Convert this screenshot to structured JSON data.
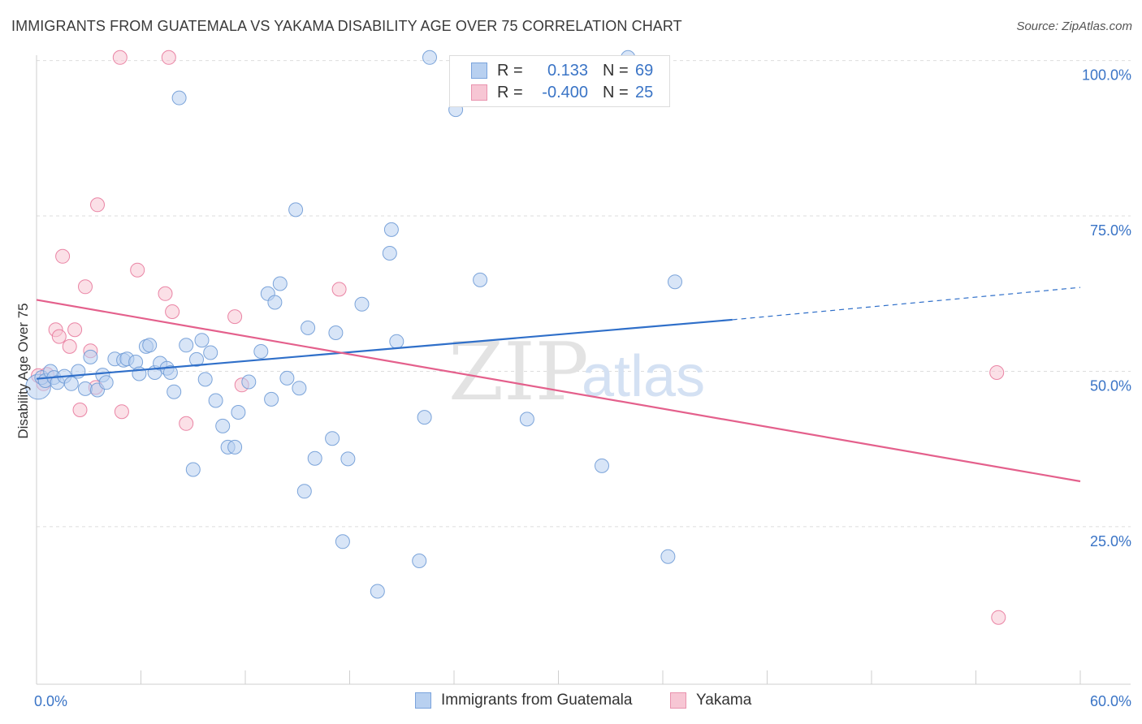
{
  "header": {
    "title": "IMMIGRANTS FROM GUATEMALA VS YAKAMA DISABILITY AGE OVER 75 CORRELATION CHART",
    "source": "Source: ZipAtlas.com"
  },
  "legend_box": {
    "rows": [
      {
        "r_label": "R =",
        "r_value": "0.133",
        "n_label": "N =",
        "n_value": "69"
      },
      {
        "r_label": "R =",
        "r_value": "-0.400",
        "n_label": "N =",
        "n_value": "25"
      }
    ]
  },
  "bottom_legend": [
    "Immigrants from Guatemala",
    "Yakama"
  ],
  "watermark": {
    "zip": "ZIP",
    "atlas": "atlas"
  },
  "colors": {
    "blue": "#3a74c6",
    "blue_fill": "#b8d0f0",
    "blue_line": "#2f6fc9",
    "pink": "#e8799c",
    "pink_fill": "#f7c6d4",
    "pink_line": "#e4608c",
    "grid": "#dddddd",
    "tick_text": "#3a74c6"
  },
  "chart_data": {
    "type": "scatter",
    "title": "IMMIGRANTS FROM GUATEMALA VS YAKAMA DISABILITY AGE OVER 75 CORRELATION CHART",
    "ylabel": "Disability Age Over 75",
    "xlabel": "",
    "xlim": [
      0,
      60
    ],
    "ylim": [
      0,
      102
    ],
    "x_tick_labels": [
      {
        "value": 0,
        "label": "0.0%"
      },
      {
        "value": 60,
        "label": "60.0%"
      }
    ],
    "y_tick_labels": [
      {
        "value": 25,
        "label": "25.0%"
      },
      {
        "value": 50,
        "label": "50.0%"
      },
      {
        "value": 75,
        "label": "75.0%"
      },
      {
        "value": 100,
        "label": "100.0%"
      }
    ],
    "grid": true,
    "legend_position": "top-center",
    "series": [
      {
        "name": "Immigrants from Guatemala",
        "color": "#3a74c6",
        "r": 0.133,
        "n": 69,
        "trend": {
          "x0": 0,
          "y0": 48.8,
          "x1": 40,
          "y1": 58.3,
          "dash_to_x": 60,
          "dash_to_y": 63.5
        },
        "points": [
          [
            0.1,
            47.5,
            1.8
          ],
          [
            0.3,
            49.0,
            1
          ],
          [
            0.5,
            48.5,
            1
          ],
          [
            0.8,
            50.0,
            1
          ],
          [
            1.0,
            49.0,
            1
          ],
          [
            1.2,
            48.2,
            1
          ],
          [
            1.6,
            49.2,
            1
          ],
          [
            2.0,
            48.0,
            1
          ],
          [
            2.4,
            50.0,
            1
          ],
          [
            2.8,
            47.2,
            1
          ],
          [
            3.1,
            52.3,
            1
          ],
          [
            3.5,
            47.0,
            1
          ],
          [
            3.8,
            49.4,
            1
          ],
          [
            4.0,
            48.2,
            1
          ],
          [
            4.5,
            52.0,
            1
          ],
          [
            5.0,
            51.8,
            1
          ],
          [
            5.2,
            52.0,
            1
          ],
          [
            5.7,
            51.5,
            1
          ],
          [
            5.9,
            49.6,
            1
          ],
          [
            6.3,
            54.0,
            1
          ],
          [
            6.5,
            54.2,
            1
          ],
          [
            6.8,
            49.8,
            1
          ],
          [
            7.1,
            51.3,
            1
          ],
          [
            7.5,
            50.5,
            1
          ],
          [
            7.7,
            49.8,
            1
          ],
          [
            7.9,
            46.7,
            1
          ],
          [
            8.2,
            94.0,
            1
          ],
          [
            8.6,
            54.2,
            1
          ],
          [
            9.0,
            34.2,
            1
          ],
          [
            9.2,
            51.9,
            1
          ],
          [
            9.5,
            55.0,
            1
          ],
          [
            9.7,
            48.7,
            1
          ],
          [
            10.0,
            53.0,
            1
          ],
          [
            10.3,
            45.3,
            1
          ],
          [
            10.7,
            41.2,
            1
          ],
          [
            11.0,
            37.8,
            1
          ],
          [
            11.4,
            37.8,
            1
          ],
          [
            11.6,
            43.4,
            1
          ],
          [
            12.2,
            48.3,
            1
          ],
          [
            12.9,
            53.2,
            1
          ],
          [
            13.3,
            62.5,
            1
          ],
          [
            13.5,
            45.5,
            1
          ],
          [
            13.7,
            61.1,
            1
          ],
          [
            14.0,
            64.1,
            1
          ],
          [
            14.4,
            48.9,
            1
          ],
          [
            14.9,
            76.0,
            1
          ],
          [
            15.1,
            47.3,
            1
          ],
          [
            15.4,
            30.7,
            1
          ],
          [
            15.6,
            57.0,
            1
          ],
          [
            16.0,
            36.0,
            1
          ],
          [
            17.0,
            39.2,
            1
          ],
          [
            17.2,
            56.2,
            1
          ],
          [
            17.6,
            22.6,
            1
          ],
          [
            17.9,
            35.9,
            1
          ],
          [
            18.7,
            60.8,
            1
          ],
          [
            19.6,
            14.6,
            1
          ],
          [
            20.3,
            69.0,
            1
          ],
          [
            20.4,
            72.8,
            1
          ],
          [
            20.7,
            54.8,
            1
          ],
          [
            22.0,
            19.5,
            1
          ],
          [
            22.3,
            42.6,
            1
          ],
          [
            22.6,
            100.5,
            1
          ],
          [
            24.1,
            92.1,
            1
          ],
          [
            25.5,
            64.7,
            1
          ],
          [
            28.2,
            42.3,
            1
          ],
          [
            32.5,
            34.8,
            1
          ],
          [
            34.0,
            100.5,
            1
          ],
          [
            36.3,
            20.2,
            1
          ],
          [
            36.7,
            64.4,
            1
          ]
        ]
      },
      {
        "name": "Yakama",
        "color": "#e8799c",
        "r": -0.4,
        "n": 25,
        "trend": {
          "x0": 0,
          "y0": 61.5,
          "x1": 60,
          "y1": 32.3
        },
        "points": [
          [
            0.1,
            49.3,
            1
          ],
          [
            0.4,
            48.0,
            1
          ],
          [
            0.6,
            49.5,
            1
          ],
          [
            1.1,
            56.7,
            1
          ],
          [
            1.3,
            55.6,
            1
          ],
          [
            1.5,
            68.5,
            1
          ],
          [
            1.9,
            54.0,
            1
          ],
          [
            2.2,
            56.7,
            1
          ],
          [
            2.5,
            43.8,
            1
          ],
          [
            2.8,
            63.6,
            1
          ],
          [
            3.1,
            53.3,
            1
          ],
          [
            3.4,
            47.4,
            1
          ],
          [
            3.5,
            76.8,
            1
          ],
          [
            4.8,
            100.5,
            1
          ],
          [
            4.9,
            43.5,
            1
          ],
          [
            5.8,
            66.3,
            1
          ],
          [
            7.4,
            62.5,
            1
          ],
          [
            7.6,
            100.5,
            1
          ],
          [
            7.8,
            59.6,
            1
          ],
          [
            8.6,
            41.6,
            1
          ],
          [
            11.4,
            58.8,
            1
          ],
          [
            11.8,
            47.8,
            1
          ],
          [
            17.4,
            63.2,
            1
          ],
          [
            55.2,
            49.8,
            1
          ],
          [
            55.3,
            10.4,
            1
          ]
        ]
      }
    ]
  }
}
